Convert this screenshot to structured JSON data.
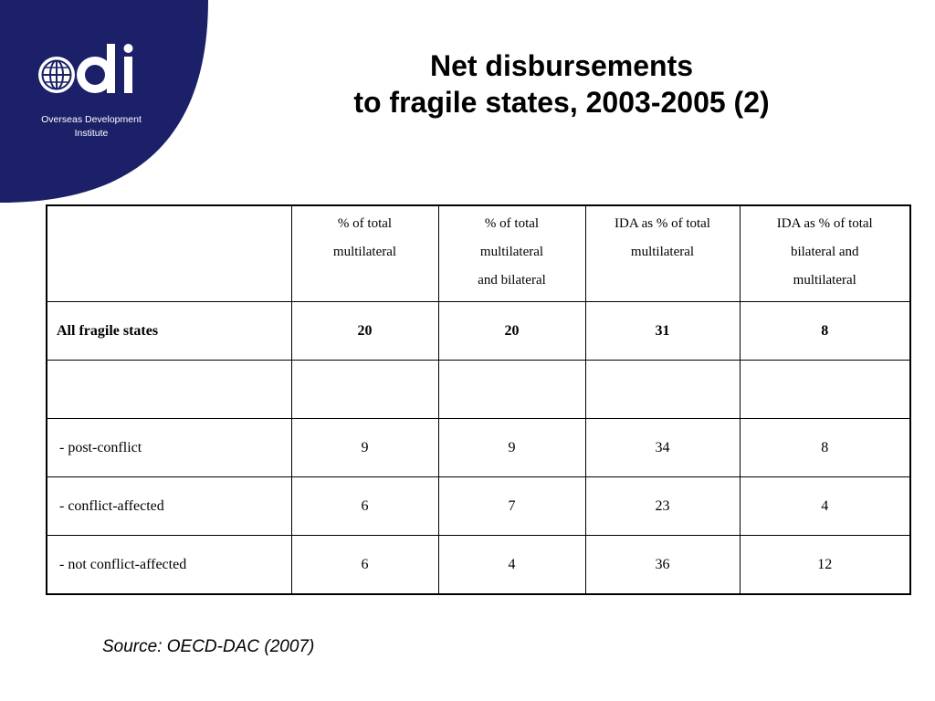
{
  "logo": {
    "mark_text": "odi",
    "org_line1": "Overseas Development",
    "org_line2": "Institute",
    "brand_color": "#1c2069"
  },
  "title": {
    "line1": "Net disbursements",
    "line2": "to fragile states, 2003-2005 (2)"
  },
  "table": {
    "headers": [
      "",
      "% of total multilateral",
      "% of total multilateral and bilateral",
      "IDA as % of total multilateral",
      "IDA as % of total bilateral and multilateral"
    ],
    "header_lines": [
      [],
      [
        "% of total",
        "multilateral"
      ],
      [
        "% of total",
        "multilateral",
        "and bilateral"
      ],
      [
        "IDA as % of total",
        "multilateral"
      ],
      [
        "IDA as % of total",
        "bilateral and",
        "multilateral"
      ]
    ],
    "rows": [
      {
        "label": "All fragile states",
        "values": [
          "20",
          "20",
          "31",
          "8"
        ],
        "bold": true
      },
      {
        "label": "",
        "values": [
          "",
          "",
          "",
          ""
        ],
        "bold": false
      },
      {
        "label": "- post-conflict",
        "values": [
          "9",
          "9",
          "34",
          "8"
        ],
        "bold": false
      },
      {
        "label": "- conflict-affected",
        "values": [
          "6",
          "7",
          "23",
          "4"
        ],
        "bold": false
      },
      {
        "label": "- not conflict-affected",
        "values": [
          "6",
          "4",
          "36",
          "12"
        ],
        "bold": false
      }
    ]
  },
  "source": "Source: OECD-DAC (2007)"
}
